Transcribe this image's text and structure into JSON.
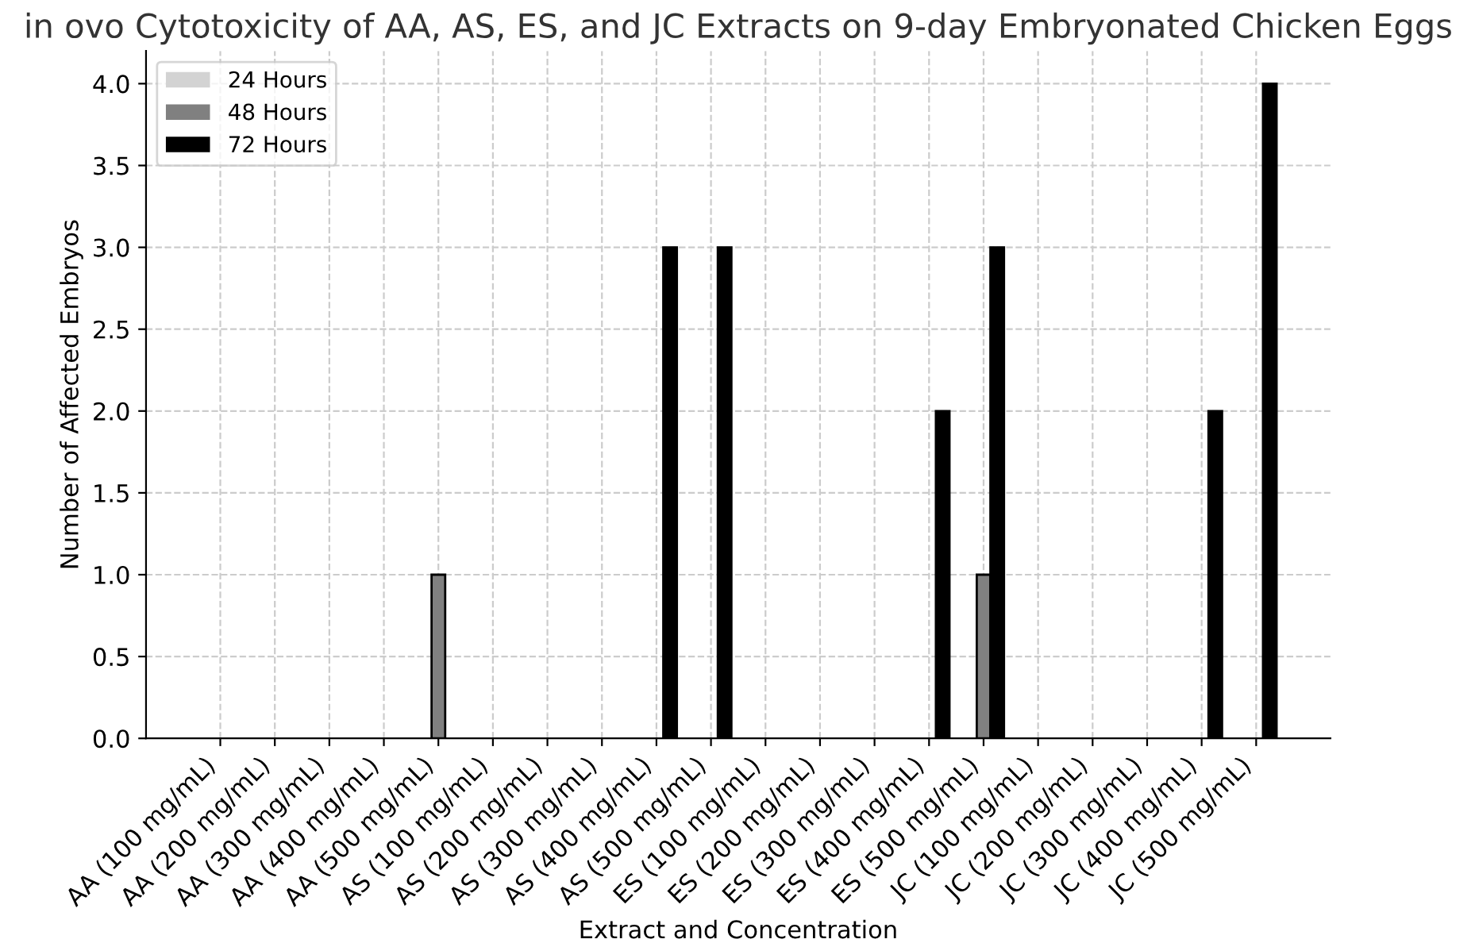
{
  "chart_data": {
    "type": "bar",
    "title": "in ovo Cytotoxicity of AA, AS, ES, and JC Extracts on 9-day Embryonated Chicken Eggs",
    "xlabel": "Extract and Concentration",
    "ylabel": "Number of Affected Embryos",
    "categories": [
      "AA (100 mg/mL)",
      "AA (200 mg/mL)",
      "AA (300 mg/mL)",
      "AA (400 mg/mL)",
      "AA (500 mg/mL)",
      "AS (100 mg/mL)",
      "AS (200 mg/mL)",
      "AS (300 mg/mL)",
      "AS (400 mg/mL)",
      "AS (500 mg/mL)",
      "ES (100 mg/mL)",
      "ES (200 mg/mL)",
      "ES (300 mg/mL)",
      "ES (400 mg/mL)",
      "ES (500 mg/mL)",
      "JC (100 mg/mL)",
      "JC (200 mg/mL)",
      "JC (300 mg/mL)",
      "JC (400 mg/mL)",
      "JC (500 mg/mL)"
    ],
    "series": [
      {
        "name": "24 Hours",
        "color": "#d3d3d3",
        "values": [
          0,
          0,
          0,
          0,
          0,
          0,
          0,
          0,
          0,
          0,
          0,
          0,
          0,
          0,
          0,
          0,
          0,
          0,
          0,
          0
        ]
      },
      {
        "name": "48 Hours",
        "color": "#808080",
        "values": [
          0,
          0,
          0,
          0,
          1,
          0,
          0,
          0,
          0,
          0,
          0,
          0,
          0,
          0,
          1,
          0,
          0,
          0,
          0,
          0
        ]
      },
      {
        "name": "72 Hours",
        "color": "#000000",
        "values": [
          0,
          0,
          0,
          0,
          0,
          0,
          0,
          0,
          3,
          3,
          0,
          0,
          0,
          2,
          3,
          0,
          0,
          0,
          2,
          4
        ]
      }
    ],
    "ylim": [
      0,
      4.2
    ],
    "yticks": [
      {
        "value": 0,
        "label": "0.0"
      },
      0.5,
      {
        "value": 1,
        "label": "1.0"
      },
      1.5,
      {
        "value": 2,
        "label": "2.0"
      },
      2.5,
      {
        "value": 3,
        "label": "3.0"
      },
      3.5,
      {
        "value": 4,
        "label": "4.0"
      }
    ],
    "grid": true,
    "legend": "top left"
  }
}
